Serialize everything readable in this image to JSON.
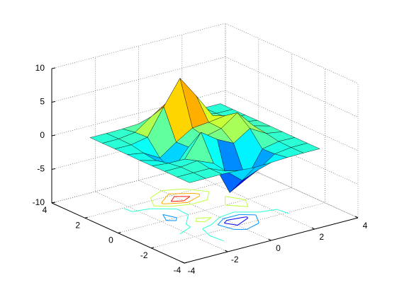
{
  "chart_data": {
    "type": "surfc",
    "x": [
      -3,
      -2.25,
      -1.5,
      -0.75,
      0,
      0.75,
      1.5,
      2.25,
      3
    ],
    "y": [
      -3,
      -2.25,
      -1.5,
      -0.75,
      0,
      0.75,
      1.5,
      2.25,
      3
    ],
    "z": [
      [
        0,
        0,
        0.01,
        -0.08,
        -0.25,
        -0.17,
        -0.03,
        0,
        0
      ],
      [
        0,
        0.01,
        0.01,
        -1.0,
        -3.02,
        -2.05,
        -0.35,
        -0.01,
        0
      ],
      [
        0,
        0.02,
        0.33,
        -0.68,
        -5.68,
        -4.32,
        -0.44,
        0.05,
        0
      ],
      [
        -0.02,
        -0.25,
        -0.28,
        3.09,
        1.4,
        0.21,
        1.78,
        0.41,
        0.02
      ],
      [
        -0.04,
        -0.69,
        -2.77,
        0.06,
        0.98,
        1.57,
        3.27,
        0.7,
        0.03
      ],
      [
        -0.02,
        -0.42,
        -1.76,
        -0.05,
        1.42,
        1.65,
        1.99,
        0.4,
        0.02
      ],
      [
        0,
        -0.03,
        0.48,
        4.37,
        8.0,
        4.72,
        1.19,
        0.12,
        0
      ],
      [
        0,
        0.02,
        0.36,
        2.07,
        3.65,
        2.09,
        0.41,
        0.03,
        0
      ],
      [
        0,
        0,
        0.03,
        0.17,
        0.3,
        0.17,
        0.03,
        0,
        0
      ]
    ],
    "xlim": [
      -4,
      4
    ],
    "ylim": [
      -4,
      4
    ],
    "zlim": [
      -10,
      10
    ],
    "xticks": [
      -4,
      -2,
      0,
      2,
      4
    ],
    "yticks": [
      -4,
      -2,
      0,
      2,
      4
    ],
    "zticks": [
      -10,
      -5,
      0,
      5,
      10
    ],
    "grid": true,
    "colormap": "jet",
    "edge_color": "#000000",
    "contour_levels": [
      -6,
      -4,
      -2,
      0,
      2,
      4,
      6
    ]
  }
}
